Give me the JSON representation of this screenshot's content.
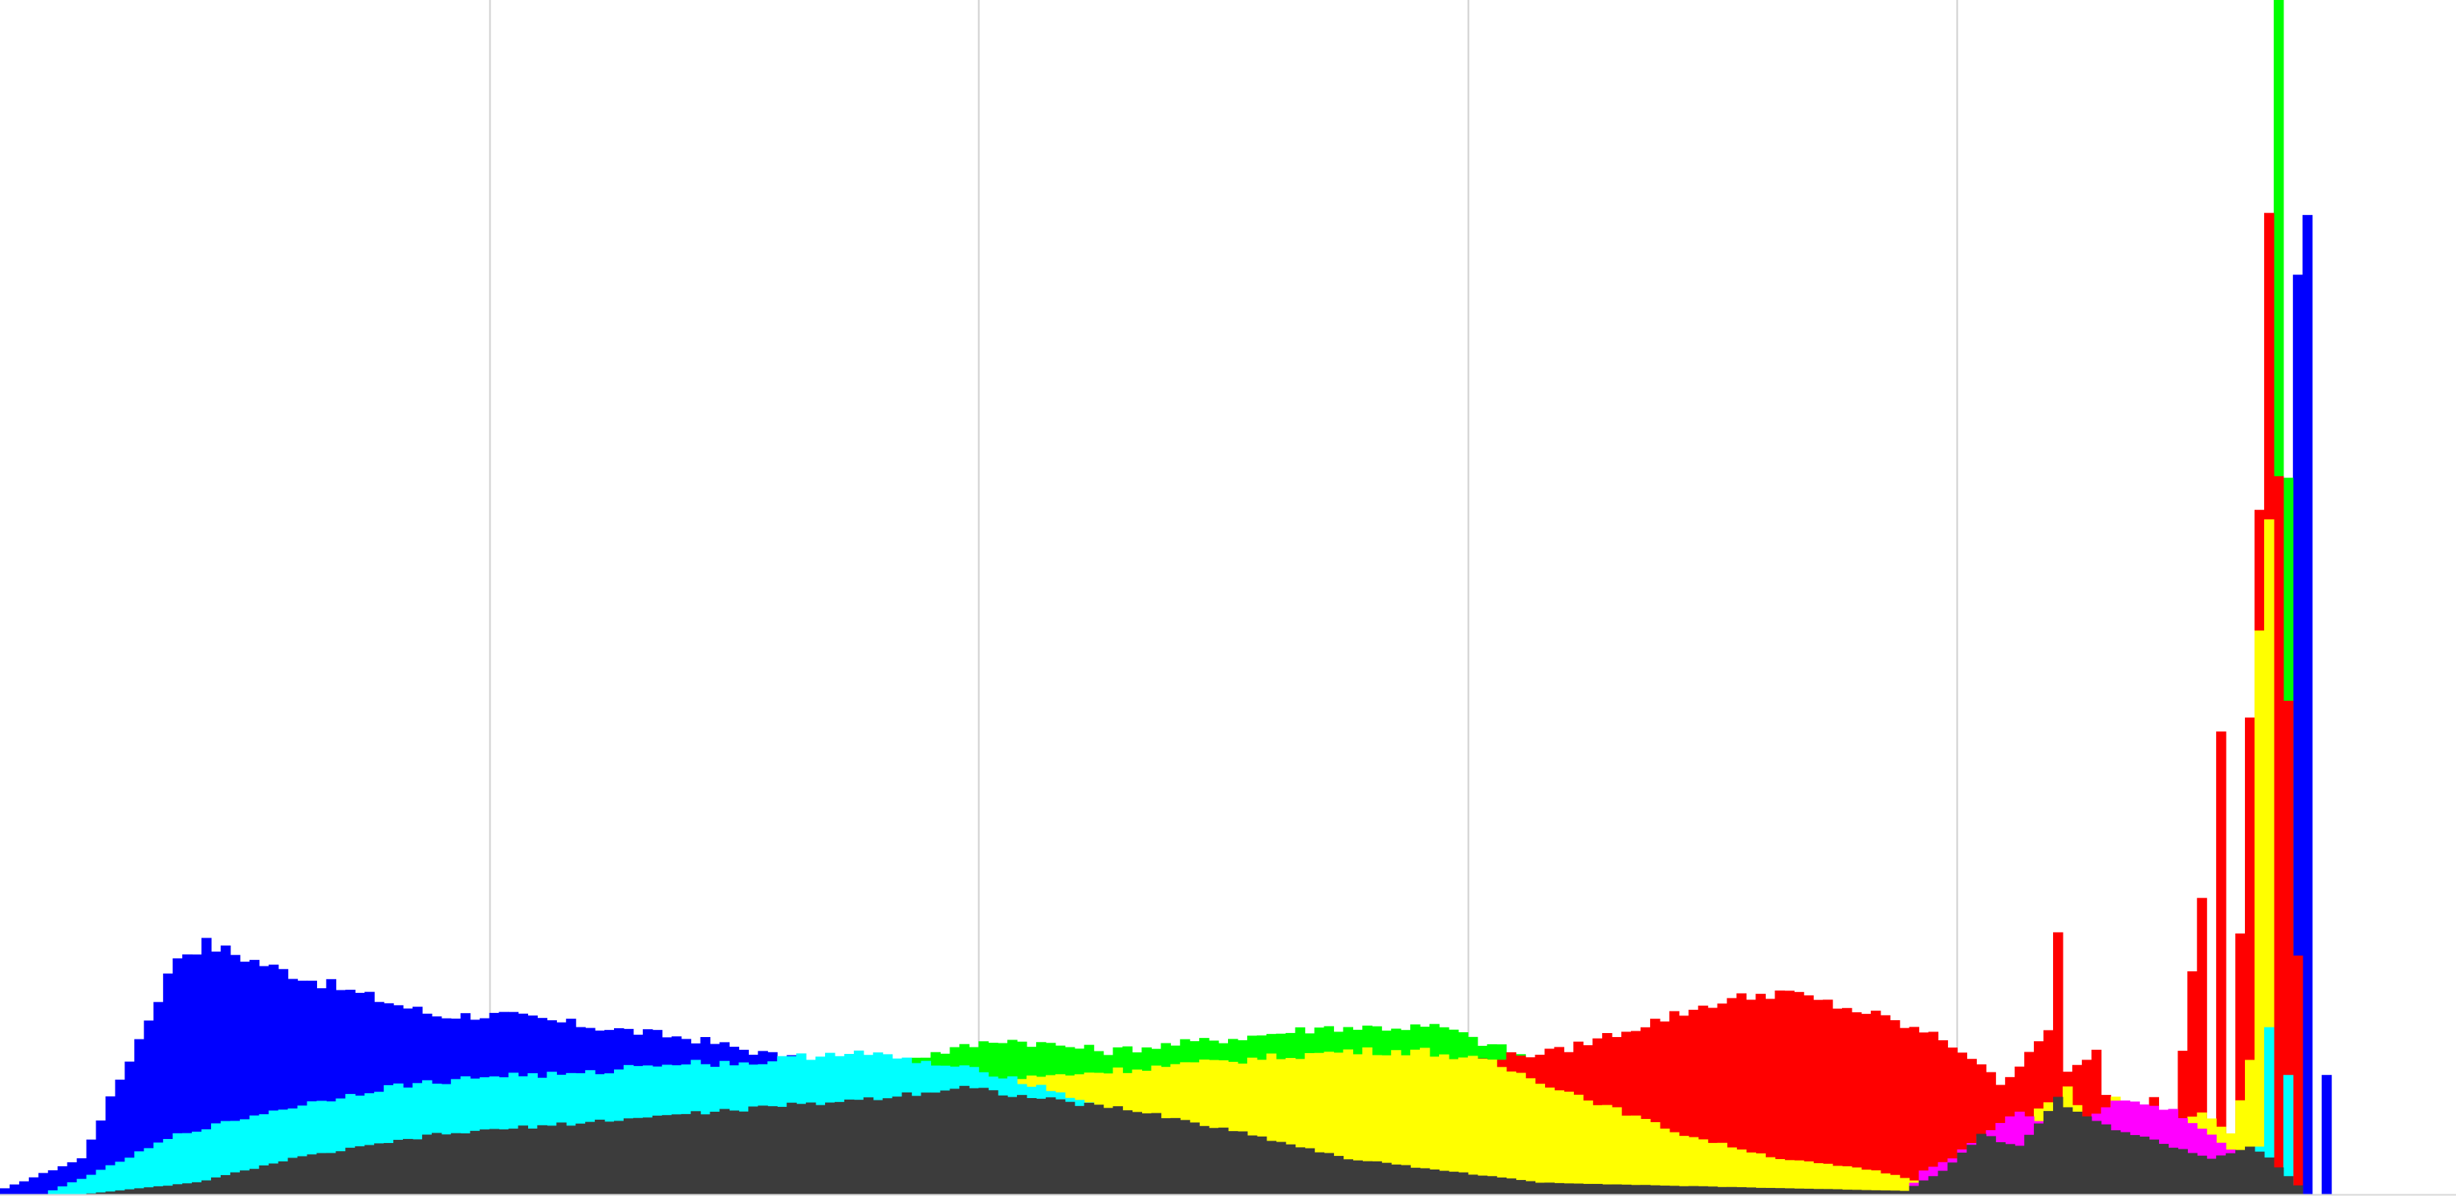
{
  "chart_data": {
    "type": "bar",
    "title": "",
    "xlabel": "",
    "ylabel": "",
    "xlim": [
      0,
      255
    ],
    "ylim": [
      0,
      100
    ],
    "grid": true,
    "legend": "none",
    "gridlines_x": [
      51,
      102,
      153,
      204
    ],
    "baseline_color": "#d8d8d8",
    "grid_color": "#d0d0d0",
    "series": [
      {
        "color": "#0000ff",
        "anchors": [
          [
            0,
            0.5
          ],
          [
            8,
            3
          ],
          [
            14,
            13
          ],
          [
            18,
            20
          ],
          [
            21,
            21
          ],
          [
            28,
            19
          ],
          [
            36,
            17
          ],
          [
            45,
            15
          ],
          [
            52,
            15
          ],
          [
            62,
            14
          ],
          [
            72,
            13
          ],
          [
            84,
            11
          ],
          [
            90,
            10
          ],
          [
            95,
            3
          ],
          [
            101,
            0
          ]
        ],
        "spikes": [
          [
            239,
            77
          ],
          [
            240,
            82
          ],
          [
            242,
            10
          ]
        ]
      },
      {
        "color": "#00ff00",
        "anchors": [
          [
            84,
            10
          ],
          [
            92,
            11
          ],
          [
            104,
            13
          ],
          [
            115,
            12
          ],
          [
            127,
            13
          ],
          [
            138,
            14
          ],
          [
            150,
            14
          ],
          [
            153,
            13
          ],
          [
            157,
            12
          ],
          [
            160,
            11
          ],
          [
            164,
            9
          ],
          [
            180,
            6
          ]
        ],
        "spikes": [
          [
            234,
            28
          ],
          [
            237,
            100
          ],
          [
            238,
            60
          ]
        ]
      },
      {
        "color": "#ff0000",
        "anchors": [
          [
            150,
            11
          ],
          [
            162,
            12
          ],
          [
            170,
            14
          ],
          [
            178,
            16
          ],
          [
            185,
            17
          ],
          [
            195,
            15
          ],
          [
            202,
            13
          ],
          [
            206,
            11
          ],
          [
            208,
            9
          ],
          [
            213,
            14
          ],
          [
            214,
            22
          ],
          [
            215,
            10
          ],
          [
            218,
            12
          ],
          [
            220,
            5
          ],
          [
            224,
            8
          ],
          [
            226,
            6
          ],
          [
            229,
            25
          ],
          [
            230,
            5
          ],
          [
            231,
            39
          ],
          [
            232,
            4
          ],
          [
            235,
            59
          ],
          [
            236,
            81
          ],
          [
            240,
            0
          ]
        ]
      },
      {
        "color": "#ffff00",
        "anchors": [
          [
            95,
            9
          ],
          [
            110,
            10
          ],
          [
            125,
            11
          ],
          [
            140,
            12
          ],
          [
            148,
            12
          ],
          [
            155,
            11
          ],
          [
            165,
            8
          ],
          [
            175,
            5
          ],
          [
            185,
            3
          ],
          [
            195,
            2
          ],
          [
            200,
            1
          ],
          [
            208,
            4
          ],
          [
            212,
            7
          ],
          [
            215,
            9
          ],
          [
            218,
            5
          ],
          [
            220,
            8
          ],
          [
            226,
            5
          ],
          [
            229,
            7
          ],
          [
            232,
            5
          ],
          [
            234,
            11
          ],
          [
            235,
            48
          ],
          [
            236,
            58
          ],
          [
            237,
            0
          ]
        ]
      },
      {
        "color": "#00ffff",
        "anchors": [
          [
            4,
            0
          ],
          [
            10,
            2
          ],
          [
            18,
            5
          ],
          [
            28,
            7
          ],
          [
            40,
            9
          ],
          [
            52,
            10
          ],
          [
            60,
            10
          ],
          [
            68,
            11
          ],
          [
            78,
            11
          ],
          [
            88,
            12
          ],
          [
            96,
            11
          ],
          [
            104,
            10
          ],
          [
            112,
            8
          ],
          [
            120,
            4
          ],
          [
            130,
            1
          ],
          [
            140,
            0
          ]
        ],
        "spikes": [
          [
            233,
            3
          ],
          [
            235,
            4
          ],
          [
            236,
            14
          ],
          [
            238,
            10
          ]
        ]
      },
      {
        "color": "#ff00ff",
        "anchors": [
          [
            198,
            0
          ],
          [
            200,
            2
          ],
          [
            203,
            3
          ],
          [
            206,
            5
          ],
          [
            210,
            7
          ],
          [
            215,
            5
          ],
          [
            220,
            8
          ],
          [
            226,
            7
          ],
          [
            230,
            5
          ],
          [
            233,
            3
          ],
          [
            236,
            0
          ]
        ]
      },
      {
        "color": "#3c3c3c",
        "anchors": [
          [
            8,
            0
          ],
          [
            20,
            1
          ],
          [
            30,
            3
          ],
          [
            45,
            5
          ],
          [
            60,
            6
          ],
          [
            75,
            7
          ],
          [
            90,
            8
          ],
          [
            100,
            9
          ],
          [
            108,
            8
          ],
          [
            118,
            7
          ],
          [
            130,
            5
          ],
          [
            140,
            3
          ],
          [
            150,
            2
          ],
          [
            160,
            1
          ],
          [
            175,
            0.7
          ],
          [
            198,
            0.3
          ],
          [
            202,
            2
          ],
          [
            206,
            5
          ],
          [
            210,
            4
          ],
          [
            214,
            8
          ],
          [
            218,
            6
          ],
          [
            222,
            5
          ],
          [
            226,
            4
          ],
          [
            230,
            3
          ],
          [
            234,
            4
          ],
          [
            236,
            3
          ],
          [
            240,
            0
          ]
        ]
      }
    ]
  }
}
